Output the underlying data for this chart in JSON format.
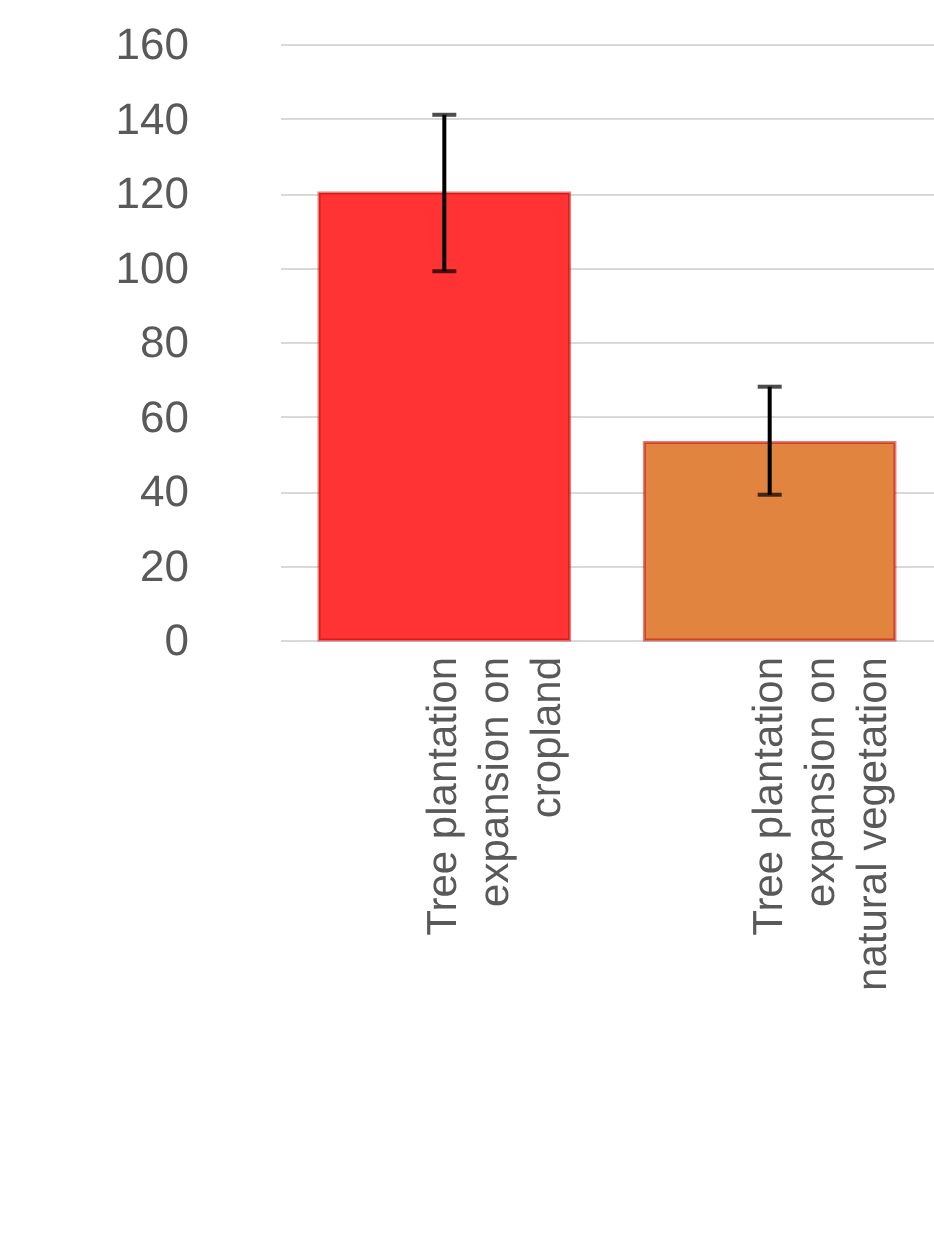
{
  "chart_data": {
    "type": "bar",
    "categories": [
      "Tree plantation\nexpansion on\ncropland",
      "Tree plantation\nexpansion on\nnatural vegetation"
    ],
    "values": [
      120,
      53
    ],
    "colors": [
      "#ff3333",
      "#e0843f"
    ],
    "errors": [
      [
        99,
        141
      ],
      [
        39,
        68
      ]
    ],
    "ylim": [
      0,
      160
    ],
    "yticks": [
      0,
      20,
      40,
      60,
      80,
      100,
      120,
      140,
      160
    ],
    "grid": "y"
  }
}
